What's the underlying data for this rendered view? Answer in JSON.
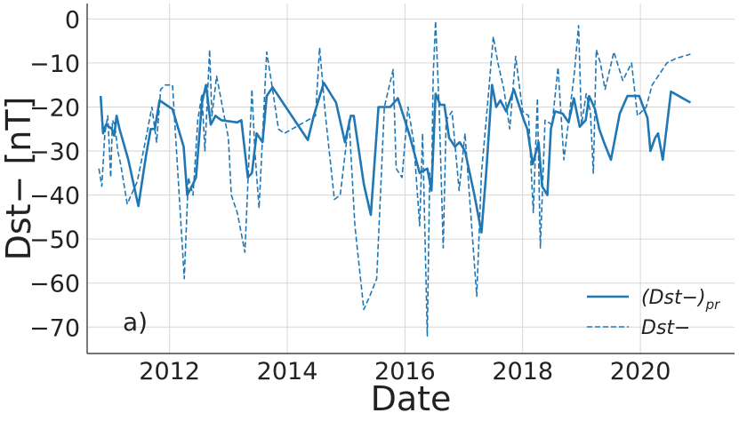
{
  "chart_data": {
    "type": "line",
    "panel_label": "a)",
    "xlabel": "Date",
    "ylabel": "Dst− [nT]",
    "xlim": [
      2010.6,
      2021.6
    ],
    "ylim": [
      -76,
      3.5
    ],
    "x_ticks": [
      2012,
      2014,
      2016,
      2018,
      2020
    ],
    "y_ticks": [
      0,
      -10,
      -20,
      -30,
      -40,
      -50,
      -60,
      -70
    ],
    "y_tick_labels": [
      "0",
      "−10",
      "−20",
      "−30",
      "−40",
      "−50",
      "−60",
      "−70"
    ],
    "grid": true,
    "legend_position": "lower right",
    "color": "#1f77b4",
    "series": [
      {
        "name": "(Dst−)pr",
        "name_main": "(Dst−)",
        "name_sub": "pr",
        "style": "solid",
        "x": [
          2010.83,
          2010.87,
          2010.92,
          2011.02,
          2011.06,
          2011.1,
          2011.15,
          2011.3,
          2011.47,
          2011.6,
          2011.68,
          2011.75,
          2011.83,
          2012.05,
          2012.24,
          2012.3,
          2012.38,
          2012.45,
          2012.55,
          2012.62,
          2012.7,
          2012.78,
          2012.88,
          2013.15,
          2013.22,
          2013.33,
          2013.4,
          2013.48,
          2013.58,
          2013.65,
          2013.75,
          2013.95,
          2014.35,
          2014.45,
          2014.62,
          2014.83,
          2014.98,
          2015.08,
          2015.13,
          2015.3,
          2015.42,
          2015.55,
          2015.75,
          2015.88,
          2016.08,
          2016.25,
          2016.38,
          2016.45,
          2016.52,
          2016.6,
          2016.67,
          2016.75,
          2016.85,
          2016.93,
          2017.02,
          2017.18,
          2017.3,
          2017.38,
          2017.48,
          2017.55,
          2017.62,
          2017.72,
          2017.85,
          2018.02,
          2018.08,
          2018.17,
          2018.27,
          2018.33,
          2018.42,
          2018.48,
          2018.55,
          2018.68,
          2018.78,
          2018.87,
          2018.97,
          2019.07,
          2019.13,
          2019.23,
          2019.3,
          2019.38,
          2019.5,
          2019.65,
          2019.78,
          2019.98,
          2020.05,
          2020.12,
          2020.17,
          2020.25,
          2020.3,
          2020.38,
          2020.52,
          2020.85
        ],
        "values": [
          -17.5,
          -26,
          -24,
          -25,
          -26.5,
          -22,
          -25,
          -32,
          -42.5,
          -31,
          -25,
          -25,
          -18.5,
          -20.5,
          -29,
          -40,
          -38,
          -36,
          -19,
          -15,
          -24,
          -22,
          -23,
          -23.5,
          -23,
          -36,
          -35,
          -26,
          -28,
          -17.5,
          -15.5,
          -19.5,
          -27.5,
          -22,
          -14.5,
          -19,
          -28,
          -22,
          -22,
          -37.5,
          -44.5,
          -20,
          -20,
          -18,
          -26.5,
          -35,
          -34,
          -39,
          -17,
          -19.5,
          -19.5,
          -27,
          -29,
          -28,
          -30,
          -40,
          -48.5,
          -35,
          -15,
          -20,
          -18.5,
          -21,
          -16,
          -23,
          -25,
          -33,
          -28,
          -38,
          -40,
          -25,
          -21,
          -21.5,
          -23.5,
          -18,
          -24.5,
          -23,
          -17.5,
          -20.5,
          -25,
          -28,
          -32,
          -21.5,
          -17.5,
          -17.5,
          -20,
          -22.5,
          -30,
          -27,
          -26,
          -32,
          -16.5,
          -19
        ]
      },
      {
        "name": "Dst−",
        "name_main": "Dst−",
        "name_sub": "",
        "style": "dashed",
        "x": [
          2010.8,
          2010.85,
          2010.9,
          2010.95,
          2011.0,
          2011.03,
          2011.07,
          2011.12,
          2011.17,
          2011.28,
          2011.45,
          2011.6,
          2011.7,
          2011.78,
          2011.85,
          2011.93,
          2012.05,
          2012.25,
          2012.32,
          2012.4,
          2012.48,
          2012.55,
          2012.6,
          2012.68,
          2012.72,
          2012.8,
          2013.0,
          2013.05,
          2013.15,
          2013.28,
          2013.4,
          2013.45,
          2013.52,
          2013.65,
          2013.75,
          2013.85,
          2013.95,
          2014.48,
          2014.55,
          2014.65,
          2014.8,
          2014.9,
          2015.05,
          2015.15,
          2015.3,
          2015.4,
          2015.52,
          2015.65,
          2015.8,
          2015.85,
          2015.95,
          2016.05,
          2016.15,
          2016.25,
          2016.3,
          2016.38,
          2016.42,
          2016.45,
          2016.48,
          2016.52,
          2016.58,
          2016.65,
          2016.7,
          2016.8,
          2016.92,
          2017.02,
          2017.1,
          2017.22,
          2017.3,
          2017.4,
          2017.5,
          2017.58,
          2017.68,
          2017.78,
          2017.88,
          2018.0,
          2018.1,
          2018.18,
          2018.25,
          2018.3,
          2018.38,
          2018.5,
          2018.6,
          2018.7,
          2018.8,
          2018.88,
          2018.95,
          2019.0,
          2019.08,
          2019.15,
          2019.2,
          2019.25,
          2019.32,
          2019.4,
          2019.55,
          2019.7,
          2019.85,
          2019.95,
          2020.1,
          2020.2,
          2020.3,
          2020.45,
          2020.6,
          2020.85
        ],
        "values": [
          -34,
          -38,
          -26,
          -22,
          -36,
          -23,
          -24,
          -30,
          -33,
          -42,
          -37,
          -27,
          -20,
          -28,
          -16,
          -15,
          -15,
          -59,
          -36,
          -40,
          -23,
          -17,
          -30,
          -7,
          -22,
          -13,
          -27,
          -40,
          -44,
          -53,
          -16,
          -30,
          -43,
          -7.5,
          -16,
          -25,
          -26,
          -22,
          -6.5,
          -22,
          -41,
          -40,
          -23,
          -47,
          -66,
          -63,
          -59,
          -20,
          -11.5,
          -34,
          -36,
          -20,
          -28,
          -47,
          -26,
          -72,
          -35,
          -39,
          -13,
          -0.5,
          -20,
          -52,
          -23,
          -21,
          -39,
          -26,
          -41,
          -63,
          -35,
          -20,
          -4,
          -10,
          -16,
          -25,
          -8.5,
          -21,
          -22,
          -44,
          -18,
          -52,
          -23,
          -24,
          -11,
          -32,
          -21,
          -12,
          -1.5,
          -24,
          -17,
          -21,
          -35,
          -7,
          -10,
          -16,
          -7.5,
          -14,
          -10,
          -22,
          -20,
          -15,
          -13,
          -10,
          -9,
          -8
        ]
      }
    ]
  }
}
